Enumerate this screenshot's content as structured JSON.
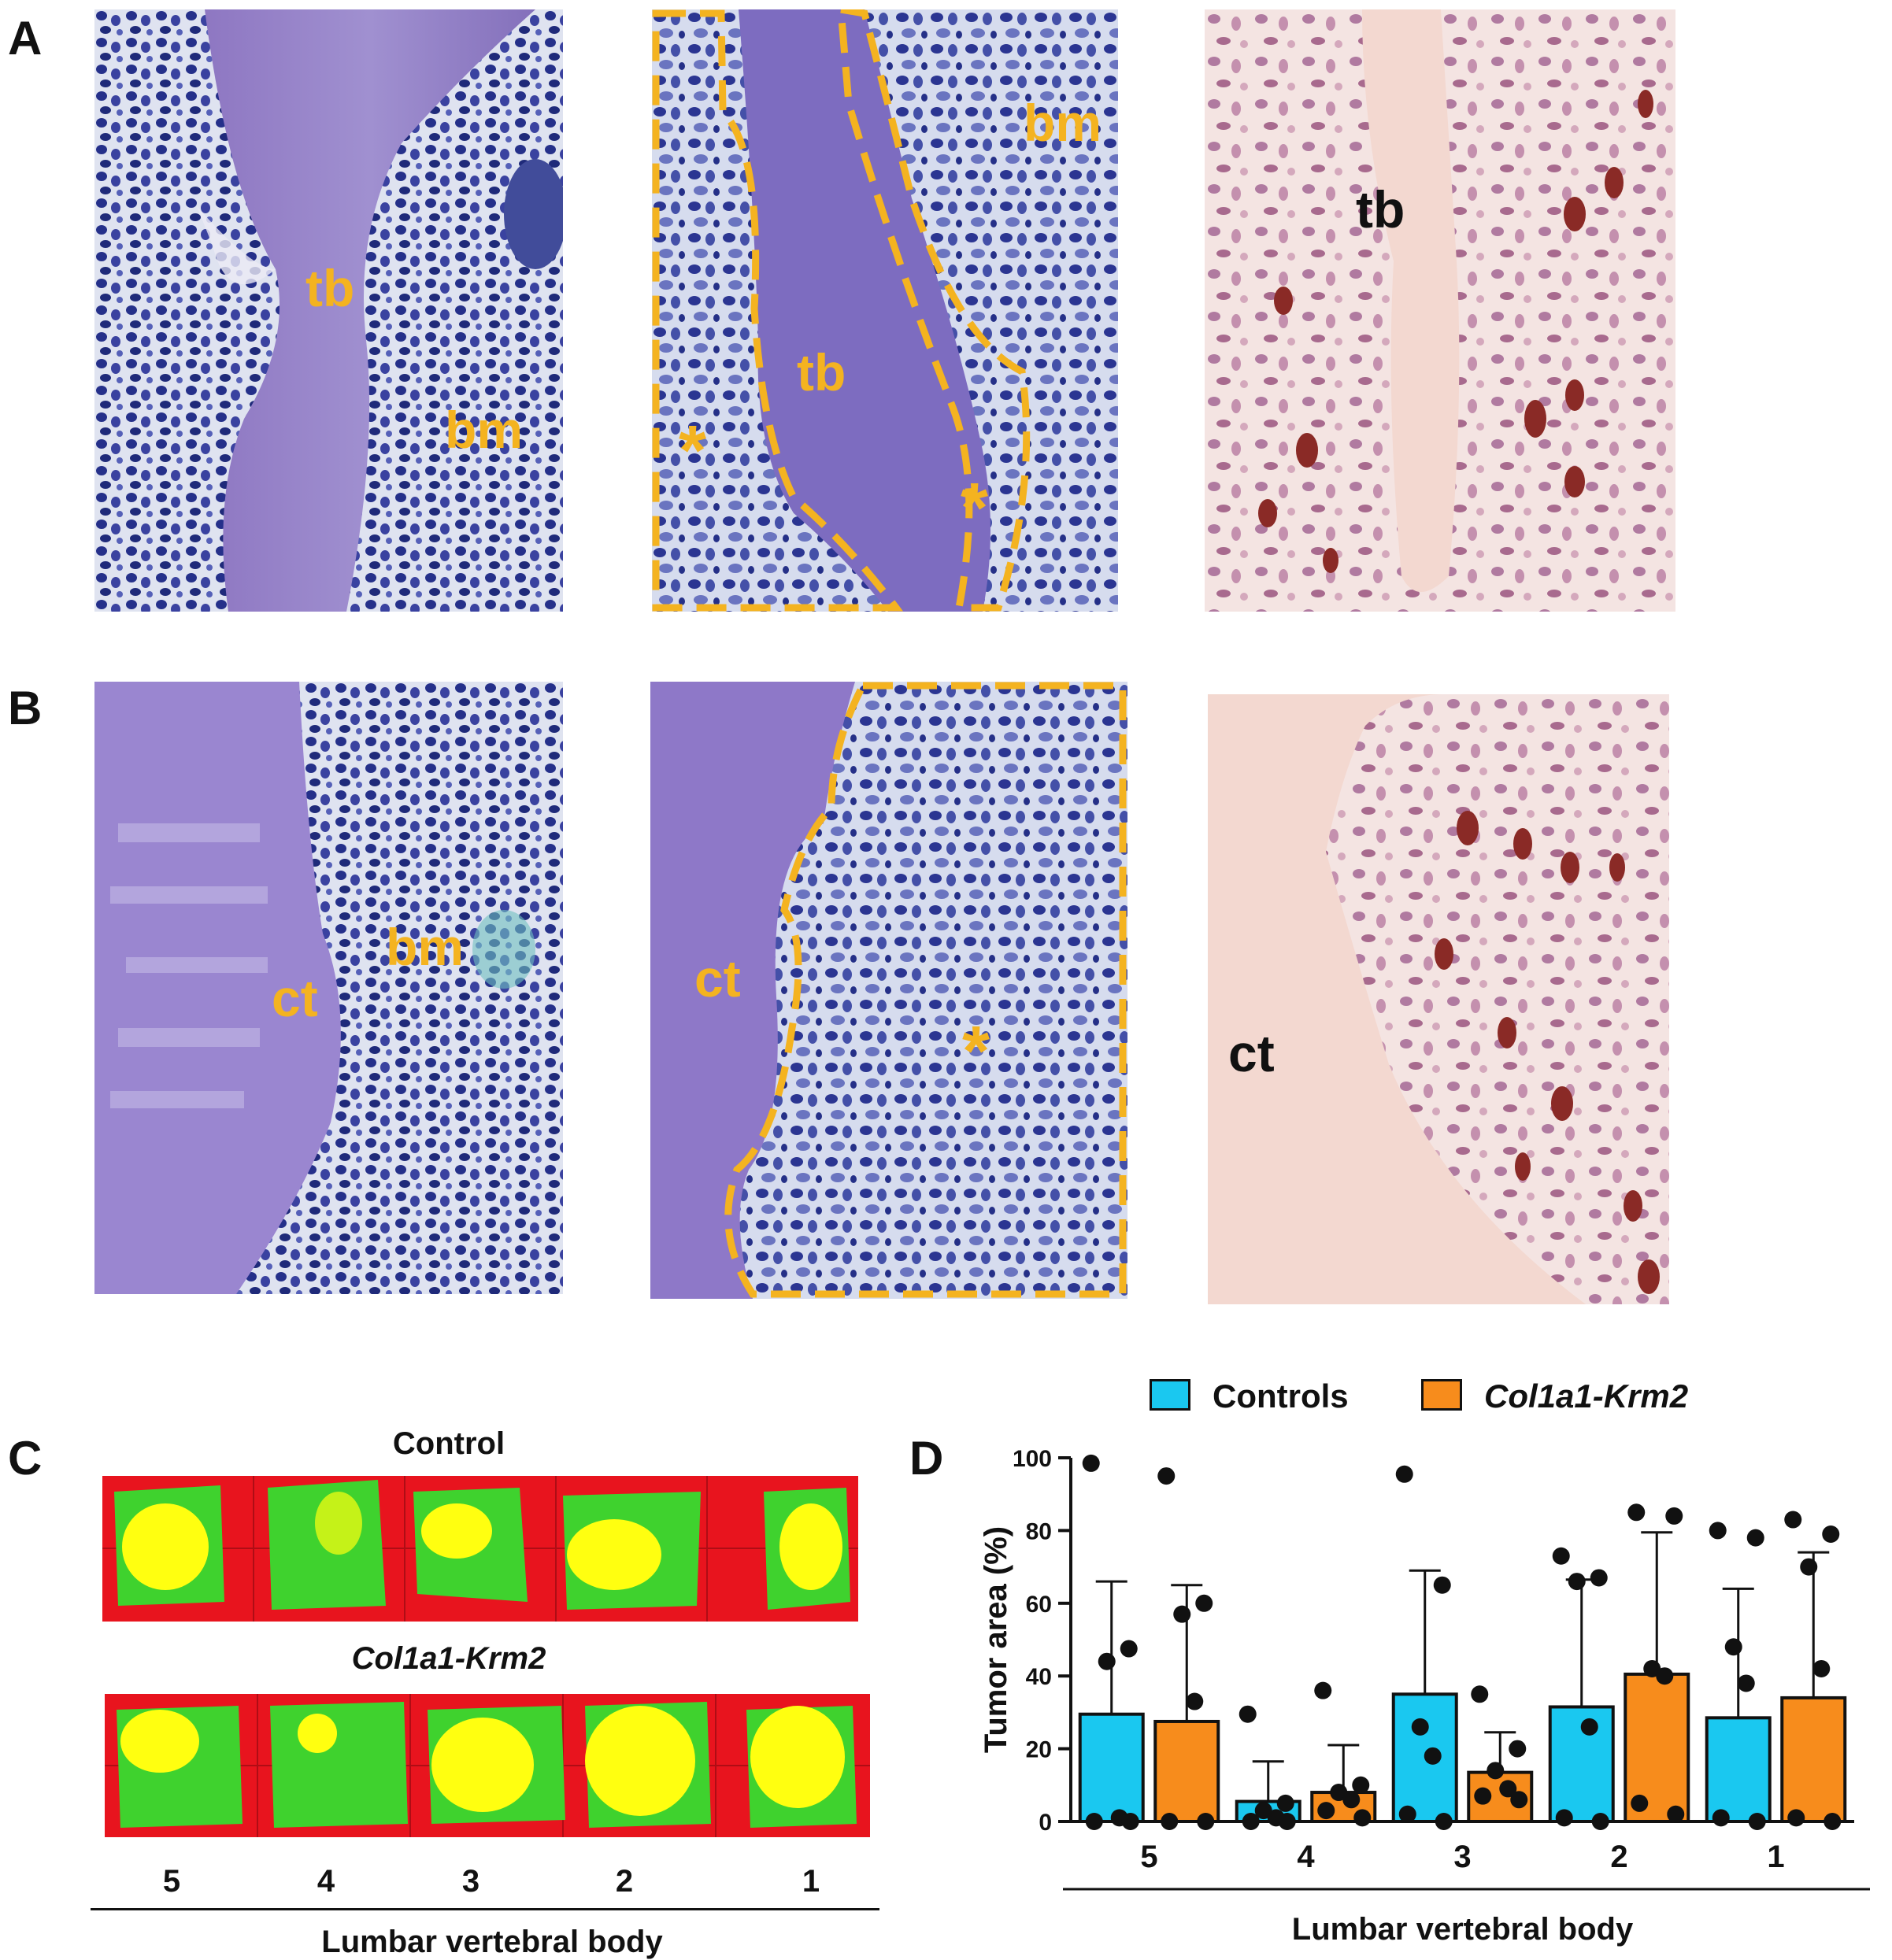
{
  "panels": {
    "A": {
      "letter": "A",
      "labels": {
        "tb1": "tb",
        "bm1": "bm",
        "tb2": "tb",
        "bm2": "bm",
        "star1": "*",
        "star2": "*",
        "tb3": "tb"
      }
    },
    "B": {
      "letter": "B",
      "labels": {
        "ct1": "ct",
        "bm1": "bm",
        "ct2": "ct",
        "star1": "*",
        "ct3": "ct"
      }
    },
    "C": {
      "letter": "C",
      "control_title": "Control",
      "mutant_title": "Col1a1-Krm2",
      "xticks": [
        "5",
        "4",
        "3",
        "2",
        "1"
      ],
      "xlabel": "Lumbar vertebral body"
    },
    "D": {
      "letter": "D"
    }
  },
  "colors": {
    "controls": "#1ac8f0",
    "mutant": "#f78c1c",
    "annot_yellow": "#f4b320",
    "map_red": "#e8141e",
    "map_green": "#3fd22e",
    "map_yellow": "#ffff10"
  },
  "chart_data": {
    "type": "bar",
    "categories": [
      "5",
      "4",
      "3",
      "2",
      "1"
    ],
    "xlabel": "Lumbar vertebral body",
    "ylabel": "Tumor area (%)",
    "ylim": [
      0,
      100
    ],
    "yticks": [
      0,
      20,
      40,
      60,
      80,
      100
    ],
    "legend_placement": "top",
    "series": [
      {
        "name": "Controls",
        "values": [
          29.5,
          5.5,
          35,
          31.5,
          28.5
        ],
        "sd": [
          36.5,
          11,
          34,
          35,
          35.5
        ],
        "points": [
          [
            98.5,
            47.5,
            44,
            1,
            0,
            0
          ],
          [
            29.5,
            5,
            3,
            1,
            0,
            0
          ],
          [
            95.5,
            65,
            26,
            18,
            2,
            0
          ],
          [
            73,
            67,
            66,
            26,
            1,
            0
          ],
          [
            80,
            78,
            48,
            38,
            1,
            0
          ]
        ]
      },
      {
        "name": "Col1a1-Krm2",
        "values": [
          27.5,
          8,
          13.5,
          40.5,
          34
        ],
        "sd": [
          37.5,
          13,
          11,
          39,
          40
        ],
        "points": [
          [
            95,
            60,
            57,
            33,
            0,
            0
          ],
          [
            36,
            10,
            8,
            6,
            3,
            1
          ],
          [
            35,
            20,
            14,
            9,
            7,
            6
          ],
          [
            85,
            84,
            42,
            40,
            5,
            2
          ],
          [
            83,
            79,
            70,
            42,
            1,
            0
          ]
        ]
      }
    ]
  }
}
